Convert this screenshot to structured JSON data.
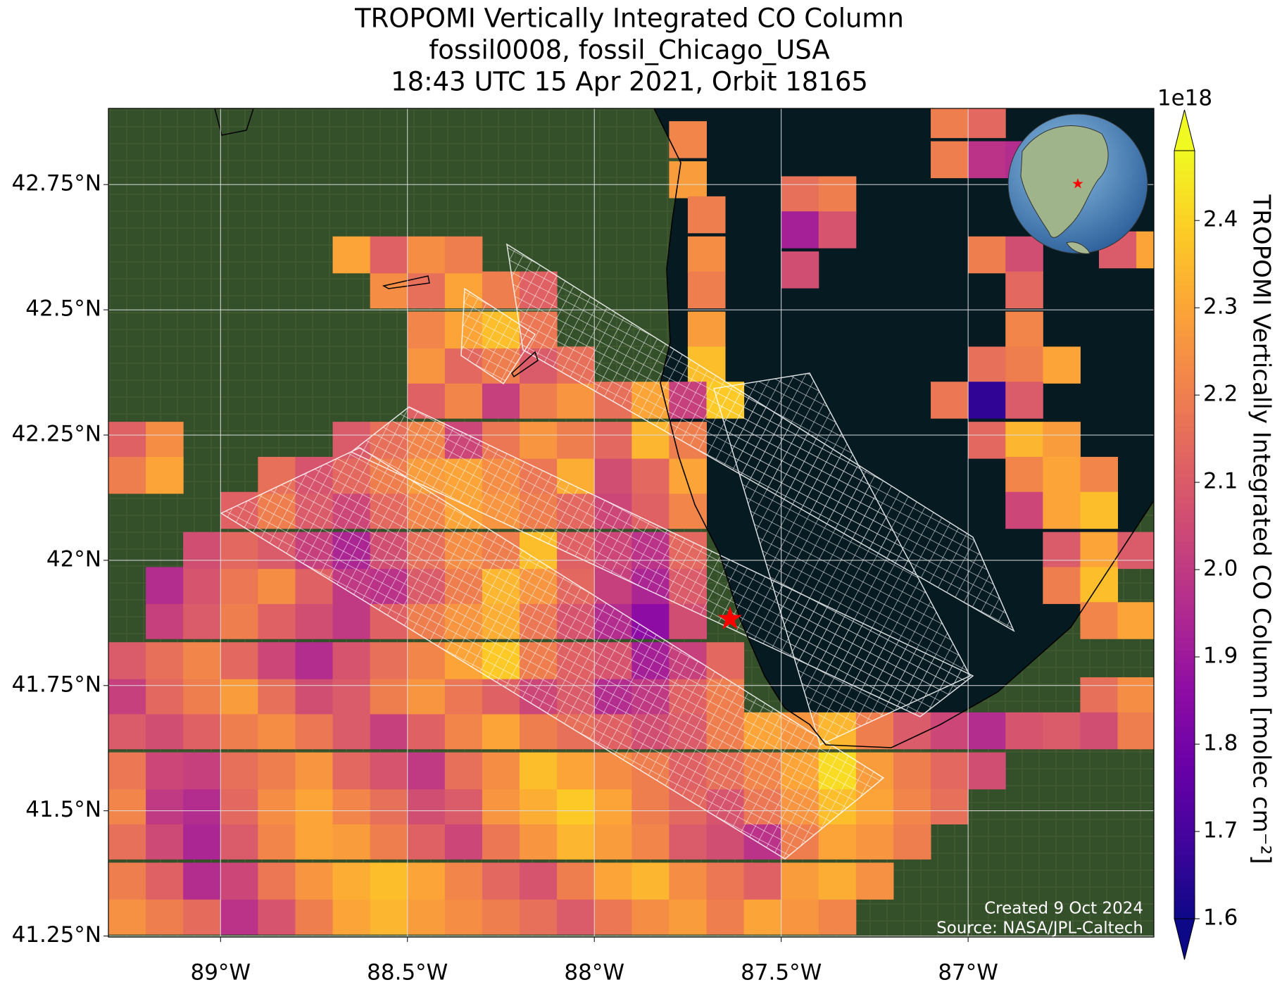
{
  "chart_data": {
    "type": "map",
    "title": [
      "TROPOMI Vertically Integrated CO Column",
      "fossil0008, fossil_Chicago_USA",
      "18:43 UTC 15 Apr 2021, Orbit 18165"
    ],
    "xlim": [
      -89.3,
      -86.503
    ],
    "ylim": [
      41.248,
      42.902
    ],
    "xticks": [
      {
        "value": -89,
        "label": "89°W"
      },
      {
        "value": -88.5,
        "label": "88.5°W"
      },
      {
        "value": -88,
        "label": "88°W"
      },
      {
        "value": -87.5,
        "label": "87.5°W"
      },
      {
        "value": -87,
        "label": "87°W"
      }
    ],
    "yticks": [
      {
        "value": 41.25,
        "label": "41.25°N"
      },
      {
        "value": 41.5,
        "label": "41.5°N"
      },
      {
        "value": 41.75,
        "label": "41.75°N"
      },
      {
        "value": 42,
        "label": "42°N"
      },
      {
        "value": 42.25,
        "label": "42.25°N"
      },
      {
        "value": 42.5,
        "label": "42.5°N"
      },
      {
        "value": 42.75,
        "label": "42.75°N"
      }
    ],
    "grid": true,
    "marker": {
      "lon": -87.637,
      "lat": 41.883,
      "color": "#ff0000"
    },
    "colorbar": {
      "label": "TROPOMI Vertically Integrated CO Column [molec cm⁻²]",
      "exponent": "1e18",
      "colormap": "plasma",
      "clim": [
        1.6,
        2.48
      ],
      "ticks": [
        1.6,
        1.7,
        1.8,
        1.9,
        {
          "value": 2,
          "label": "2.0"
        },
        2.1,
        2.2,
        2.3,
        2.4
      ]
    },
    "notes": [
      "Created 9 Oct 2024",
      "Source: NASA/JPL-Caltech"
    ],
    "rows": [
      {
        "lat": 41.29,
        "lon0": -89.25,
        "values": [
          2.25,
          2.2,
          2.15,
          1.98,
          2.08,
          2.2,
          2.3,
          2.34,
          2.28,
          2.24,
          2.2,
          2.16,
          2.1,
          2.18,
          2.24,
          2.28,
          2.2,
          2.3,
          2.26,
          2.22
        ]
      },
      {
        "lat": 41.36,
        "lon0": -89.25,
        "values": [
          2.2,
          2.12,
          1.96,
          2.04,
          2.18,
          2.26,
          2.32,
          2.36,
          2.3,
          2.22,
          2.14,
          2.08,
          2.2,
          2.3,
          2.34,
          2.24,
          2.18,
          2.12,
          2.28,
          2.32,
          2.25
        ]
      },
      {
        "lat": 41.44,
        "lon0": -89.25,
        "values": [
          2.16,
          2.05,
          1.94,
          2.1,
          2.22,
          2.3,
          2.28,
          2.2,
          2.12,
          2.04,
          2.18,
          2.26,
          2.34,
          2.28,
          2.22,
          2.1,
          2.06,
          1.98,
          2.2,
          2.3,
          2.26,
          2.2
        ]
      },
      {
        "lat": 41.51,
        "lon0": -89.25,
        "values": [
          2.22,
          2.0,
          1.96,
          2.14,
          2.24,
          2.3,
          2.22,
          2.16,
          2.06,
          2.1,
          2.26,
          2.32,
          2.38,
          2.3,
          2.2,
          2.14,
          2.08,
          2.18,
          2.26,
          2.36,
          2.3,
          2.22,
          2.16
        ]
      },
      {
        "lat": 41.58,
        "lon0": -89.25,
        "values": [
          2.18,
          2.04,
          2.02,
          2.16,
          2.2,
          2.26,
          2.14,
          2.08,
          2.0,
          2.16,
          2.24,
          2.36,
          2.3,
          2.24,
          2.2,
          2.12,
          2.16,
          2.22,
          2.3,
          2.42,
          2.28,
          2.2,
          2.14,
          2.06
        ]
      },
      {
        "lat": 41.66,
        "lon0": -89.25,
        "values": [
          2.1,
          2.06,
          2.12,
          2.2,
          2.24,
          2.18,
          2.1,
          2.02,
          2.12,
          2.22,
          2.3,
          2.2,
          2.16,
          2.12,
          2.06,
          2.1,
          2.2,
          2.3,
          2.26,
          2.34,
          2.2,
          2.1,
          2.04,
          1.96,
          2.08
        ]
      },
      {
        "lat": 41.73,
        "lon0": -89.25,
        "values": [
          2.02,
          2.14,
          2.2,
          2.28,
          2.16,
          2.06,
          2.1,
          2.2,
          2.26,
          2.18,
          2.12,
          2.04,
          2.1,
          1.96,
          2.0,
          2.12,
          2.2
        ]
      },
      {
        "lat": 41.8,
        "lon0": -89.25,
        "values": [
          2.1,
          2.16,
          2.22,
          2.14,
          2.04,
          1.96,
          2.08,
          2.16,
          2.22,
          2.3,
          2.38,
          2.2,
          2.12,
          2.08,
          1.92,
          2.02,
          2.14
        ]
      },
      {
        "lat": 41.88,
        "lon0": -89.15,
        "values": [
          2.02,
          2.1,
          2.2,
          2.12,
          2.06,
          2.0,
          2.12,
          2.2,
          2.26,
          2.32,
          2.18,
          2.08,
          1.96,
          1.86,
          2.06
        ]
      },
      {
        "lat": 41.95,
        "lon0": -89.15,
        "values": [
          1.96,
          2.08,
          2.18,
          2.24,
          2.12,
          2.0,
          1.98,
          2.1,
          2.2,
          2.34,
          2.26,
          2.14,
          2.02,
          1.94,
          2.1
        ]
      },
      {
        "lat": 42.02,
        "lon0": -89.05,
        "values": [
          2.06,
          2.14,
          2.1,
          2.02,
          1.94,
          2.06,
          2.16,
          2.24,
          2.2,
          2.36,
          2.12,
          2.04,
          1.98,
          2.14
        ]
      },
      {
        "lat": 42.1,
        "lon0": -88.95,
        "values": [
          2.12,
          2.2,
          2.1,
          2.04,
          2.14,
          2.22,
          2.3,
          2.26,
          2.2,
          2.14,
          2.04,
          2.12,
          2.22
        ]
      },
      {
        "lat": 42.17,
        "lon0": -88.85,
        "values": [
          2.16,
          2.08,
          2.14,
          2.2,
          2.28,
          2.3,
          2.24,
          2.18,
          2.32,
          2.06,
          2.14,
          2.3
        ]
      },
      {
        "lat": 42.24,
        "lon0": -88.65,
        "values": [
          2.1,
          2.16,
          2.22,
          2.04,
          2.18,
          2.26,
          2.2,
          2.14,
          2.34,
          2.2
        ]
      },
      {
        "lat": 42.32,
        "lon0": -88.45,
        "values": [
          2.12,
          2.22,
          2.02,
          2.2,
          2.26,
          2.16,
          2.3
        ]
      },
      {
        "lat": 42.39,
        "lon0": -88.45,
        "values": [
          2.26,
          2.14,
          2.2,
          2.1,
          2.16
        ]
      },
      {
        "lat": 42.46,
        "lon0": -88.45,
        "values": [
          2.22,
          2.3,
          2.36,
          2.18
        ]
      },
      {
        "lat": 42.54,
        "lon0": -88.55,
        "values": [
          2.24,
          2.16,
          2.3,
          2.2,
          2.12
        ]
      },
      {
        "lat": 42.61,
        "lon0": -88.65,
        "values": [
          2.3,
          2.12,
          2.24,
          2.2
        ]
      },
      {
        "lat": 42.24,
        "lon0": -89.25,
        "values": [
          2.12,
          2.24
        ]
      },
      {
        "lat": 42.17,
        "lon0": -89.25,
        "values": [
          2.2,
          2.3
        ]
      },
      {
        "lat": 42.84,
        "lon0": -87.75,
        "values": [
          2.22
        ]
      },
      {
        "lat": 42.76,
        "lon0": -87.75,
        "values": [
          2.28
        ]
      },
      {
        "lat": 42.69,
        "lon0": -87.7,
        "values": [
          2.2
        ]
      },
      {
        "lat": 42.61,
        "lon0": -87.7,
        "values": [
          2.24
        ]
      },
      {
        "lat": 42.54,
        "lon0": -87.7,
        "values": [
          2.2
        ]
      },
      {
        "lat": 42.46,
        "lon0": -87.7,
        "values": [
          2.28
        ]
      },
      {
        "lat": 42.39,
        "lon0": -87.7,
        "values": [
          2.36
        ]
      },
      {
        "lat": 42.32,
        "lon0": -87.75,
        "values": [
          2.02,
          2.38
        ]
      },
      {
        "lat": 42.88,
        "lon0": -87.05,
        "values": [
          2.2,
          2.14
        ]
      },
      {
        "lat": 42.8,
        "lon0": -87.05,
        "values": [
          2.2,
          1.98,
          1.96
        ]
      },
      {
        "lat": 42.73,
        "lon0": -87.45,
        "values": [
          2.16,
          2.2
        ]
      },
      {
        "lat": 42.66,
        "lon0": -87.45,
        "values": [
          1.92,
          2.08
        ]
      },
      {
        "lat": 42.58,
        "lon0": -87.45,
        "values": [
          2.06
        ]
      },
      {
        "lat": 42.61,
        "lon0": -86.95,
        "values": [
          2.2,
          2.06
        ]
      },
      {
        "lat": 42.54,
        "lon0": -86.85,
        "values": [
          2.14
        ]
      },
      {
        "lat": 42.46,
        "lon0": -86.85,
        "values": [
          2.22
        ]
      },
      {
        "lat": 42.39,
        "lon0": -86.95,
        "values": [
          2.16,
          2.2,
          2.3
        ]
      },
      {
        "lat": 42.32,
        "lon0": -87.05,
        "values": [
          2.18,
          1.66,
          2.1
        ]
      },
      {
        "lat": 42.24,
        "lon0": -86.95,
        "values": [
          2.14,
          2.34,
          2.28
        ]
      },
      {
        "lat": 42.17,
        "lon0": -86.85,
        "values": [
          2.22,
          2.3,
          2.22
        ]
      },
      {
        "lat": 42.1,
        "lon0": -86.85,
        "values": [
          2.04,
          2.3,
          2.36
        ]
      },
      {
        "lat": 42.02,
        "lon0": -86.75,
        "values": [
          2.1,
          2.3,
          2.1
        ]
      },
      {
        "lat": 41.95,
        "lon0": -86.75,
        "values": [
          2.2,
          2.36
        ]
      },
      {
        "lat": 41.88,
        "lon0": -86.65,
        "values": [
          2.22,
          2.3
        ]
      },
      {
        "lat": 42.62,
        "lon0": -86.6,
        "values": [
          2.1,
          2.3
        ]
      },
      {
        "lat": 41.73,
        "lon0": -86.65,
        "values": [
          2.16,
          2.24
        ]
      },
      {
        "lat": 41.66,
        "lon0": -86.75,
        "values": [
          2.1,
          2.06,
          2.2
        ]
      }
    ]
  }
}
